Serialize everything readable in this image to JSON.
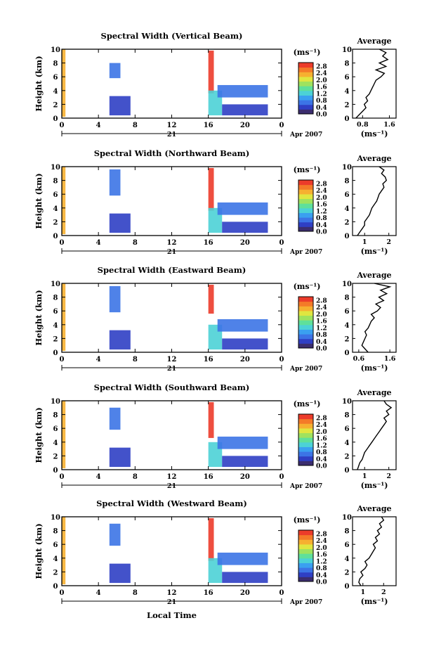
{
  "figure": {
    "date_label": "Apr 2007",
    "day_label": "21",
    "bottom_xlabel": "Local Time",
    "ylabel": "Height (km)",
    "units_label": "(ms⁻¹)",
    "avg_title": "Average",
    "avg_units": "(ms⁻¹)"
  },
  "colors": {
    "scale": [
      "#3b2d6e",
      "#2f3fc4",
      "#3c74e6",
      "#3aa0f0",
      "#4cd2d6",
      "#5fe09a",
      "#9fe25e",
      "#e0e640",
      "#f6b030",
      "#f47a28",
      "#ec3b2a"
    ]
  },
  "chart_data": [
    {
      "type": "heatmap",
      "title": "Spectral Width (Vertical Beam)",
      "xlabel": "Local Time",
      "ylabel": "Height (km)",
      "x_ticks": [
        "0",
        "4",
        "8",
        "12",
        "16",
        "20",
        "0"
      ],
      "xlim": [
        0,
        24
      ],
      "ylim": [
        0,
        10
      ],
      "y_ticks": [
        "0",
        "2",
        "4",
        "6",
        "8",
        "10"
      ],
      "colorbar": {
        "label": "(ms⁻¹)",
        "ticks": [
          "0.0",
          "0.4",
          "0.8",
          "1.2",
          "1.6",
          "2.0",
          "2.4",
          "2.8"
        ],
        "range": [
          0,
          3.0
        ]
      },
      "blocks": [
        {
          "t": [
            0.0,
            0.4
          ],
          "h": [
            0.2,
            10.0
          ],
          "level": 2.2
        },
        {
          "t": [
            5.2,
            7.5
          ],
          "h": [
            0.4,
            3.2
          ],
          "level": 0.3
        },
        {
          "t": [
            5.2,
            6.4
          ],
          "h": [
            5.8,
            8.0
          ],
          "level": 0.6
        },
        {
          "t": [
            16.0,
            16.6
          ],
          "h": [
            3.6,
            9.8
          ],
          "level": 2.8
        },
        {
          "t": [
            16.0,
            17.5
          ],
          "h": [
            0.4,
            4.0
          ],
          "level": 1.2
        },
        {
          "t": [
            17.5,
            22.5
          ],
          "h": [
            0.4,
            2.0
          ],
          "level": 0.5
        },
        {
          "t": [
            17.0,
            22.5
          ],
          "h": [
            3.0,
            4.8
          ],
          "level": 0.7
        }
      ],
      "average": {
        "xticks": [
          "0.8",
          "1.6"
        ],
        "xlim": [
          0.5,
          1.8
        ],
        "h": [
          0,
          0.5,
          1,
          1.5,
          2,
          2.5,
          3,
          3.5,
          4,
          4.5,
          5,
          5.5,
          6,
          6.5,
          7,
          7.5,
          8,
          8.5,
          9,
          9.5,
          10
        ],
        "v": [
          0.6,
          0.7,
          0.8,
          0.9,
          0.85,
          0.95,
          0.9,
          1.0,
          1.05,
          1.1,
          1.15,
          1.2,
          1.35,
          1.45,
          1.2,
          1.5,
          1.3,
          1.55,
          1.4,
          1.5,
          1.3
        ]
      }
    },
    {
      "type": "heatmap",
      "title": "Spectral Width (Northward Beam)",
      "xlabel": "Local Time",
      "ylabel": "Height (km)",
      "x_ticks": [
        "0",
        "4",
        "8",
        "12",
        "16",
        "20",
        "0"
      ],
      "xlim": [
        0,
        24
      ],
      "ylim": [
        0,
        10
      ],
      "y_ticks": [
        "0",
        "2",
        "4",
        "6",
        "8",
        "10"
      ],
      "colorbar": {
        "label": "(ms⁻¹)",
        "ticks": [
          "0.0",
          "0.4",
          "0.8",
          "1.2",
          "1.6",
          "2.0",
          "2.4",
          "2.8"
        ],
        "range": [
          0,
          3.0
        ]
      },
      "blocks": [
        {
          "t": [
            0.0,
            0.4
          ],
          "h": [
            0.2,
            10.0
          ],
          "level": 2.2
        },
        {
          "t": [
            5.2,
            7.5
          ],
          "h": [
            0.4,
            3.2
          ],
          "level": 0.3
        },
        {
          "t": [
            5.2,
            6.4
          ],
          "h": [
            5.8,
            9.6
          ],
          "level": 0.6
        },
        {
          "t": [
            16.0,
            16.6
          ],
          "h": [
            3.6,
            9.8
          ],
          "level": 2.8
        },
        {
          "t": [
            16.0,
            17.5
          ],
          "h": [
            0.4,
            4.0
          ],
          "level": 1.2
        },
        {
          "t": [
            17.5,
            22.5
          ],
          "h": [
            0.4,
            2.0
          ],
          "level": 0.5
        },
        {
          "t": [
            17.0,
            22.5
          ],
          "h": [
            3.0,
            4.8
          ],
          "level": 0.7
        }
      ],
      "average": {
        "xticks": [
          "1",
          "2"
        ],
        "xlim": [
          0.5,
          2.3
        ],
        "h": [
          0,
          0.5,
          1,
          1.5,
          2,
          2.5,
          3,
          3.5,
          4,
          4.5,
          5,
          5.5,
          6,
          6.5,
          7,
          7.5,
          8,
          8.5,
          9,
          9.5,
          10
        ],
        "v": [
          0.7,
          0.8,
          0.9,
          1.0,
          1.0,
          1.1,
          1.2,
          1.25,
          1.3,
          1.4,
          1.5,
          1.55,
          1.6,
          1.7,
          1.8,
          1.75,
          1.9,
          1.85,
          1.7,
          1.8,
          1.6
        ]
      }
    },
    {
      "type": "heatmap",
      "title": "Spectral Width (Eastward Beam)",
      "xlabel": "Local Time",
      "ylabel": "Height (km)",
      "x_ticks": [
        "0",
        "4",
        "8",
        "12",
        "16",
        "20",
        "0"
      ],
      "xlim": [
        0,
        24
      ],
      "ylim": [
        0,
        10
      ],
      "y_ticks": [
        "0",
        "2",
        "4",
        "6",
        "8",
        "10"
      ],
      "colorbar": {
        "label": "(ms⁻¹)",
        "ticks": [
          "0.0",
          "0.4",
          "0.8",
          "1.2",
          "1.6",
          "2.0",
          "2.4",
          "2.8"
        ],
        "range": [
          0,
          3.0
        ]
      },
      "blocks": [
        {
          "t": [
            0.0,
            0.4
          ],
          "h": [
            0.2,
            10.0
          ],
          "level": 2.2
        },
        {
          "t": [
            5.2,
            7.5
          ],
          "h": [
            0.4,
            3.2
          ],
          "level": 0.3
        },
        {
          "t": [
            5.2,
            6.4
          ],
          "h": [
            5.8,
            9.6
          ],
          "level": 0.6
        },
        {
          "t": [
            16.0,
            16.6
          ],
          "h": [
            5.6,
            9.8
          ],
          "level": 2.8
        },
        {
          "t": [
            16.0,
            17.5
          ],
          "h": [
            0.4,
            4.0
          ],
          "level": 1.2
        },
        {
          "t": [
            17.5,
            22.5
          ],
          "h": [
            0.4,
            2.0
          ],
          "level": 0.5
        },
        {
          "t": [
            17.0,
            22.5
          ],
          "h": [
            3.0,
            4.8
          ],
          "level": 0.7
        }
      ],
      "average": {
        "xticks": [
          "0.6",
          "1.6"
        ],
        "xlim": [
          0.4,
          1.8
        ],
        "h": [
          0,
          0.5,
          1,
          1.5,
          2,
          2.5,
          3,
          3.5,
          4,
          4.5,
          5,
          5.5,
          6,
          6.5,
          7,
          7.5,
          8,
          8.5,
          9,
          9.5,
          10
        ],
        "v": [
          0.9,
          0.8,
          0.7,
          0.75,
          0.8,
          0.85,
          0.8,
          0.9,
          0.95,
          1.0,
          1.1,
          1.0,
          1.2,
          1.3,
          1.15,
          1.4,
          1.25,
          1.5,
          1.3,
          1.6,
          1.1
        ]
      }
    },
    {
      "type": "heatmap",
      "title": "Spectral Width (Southward Beam)",
      "xlabel": "Local Time",
      "ylabel": "Height (km)",
      "x_ticks": [
        "0",
        "4",
        "8",
        "12",
        "16",
        "20",
        "0"
      ],
      "xlim": [
        0,
        24
      ],
      "ylim": [
        0,
        10
      ],
      "y_ticks": [
        "0",
        "2",
        "4",
        "6",
        "8",
        "10"
      ],
      "colorbar": {
        "label": "(ms⁻¹)",
        "ticks": [
          "0.0",
          "0.4",
          "0.8",
          "1.2",
          "1.6",
          "2.0",
          "2.4",
          "2.8"
        ],
        "range": [
          0,
          3.0
        ]
      },
      "blocks": [
        {
          "t": [
            0.0,
            0.4
          ],
          "h": [
            0.2,
            10.0
          ],
          "level": 2.2
        },
        {
          "t": [
            5.2,
            7.5
          ],
          "h": [
            0.4,
            3.2
          ],
          "level": 0.3
        },
        {
          "t": [
            5.2,
            6.4
          ],
          "h": [
            5.8,
            9.0
          ],
          "level": 0.6
        },
        {
          "t": [
            16.0,
            16.6
          ],
          "h": [
            4.6,
            9.8
          ],
          "level": 2.8
        },
        {
          "t": [
            16.0,
            17.5
          ],
          "h": [
            0.4,
            4.0
          ],
          "level": 1.2
        },
        {
          "t": [
            17.5,
            22.5
          ],
          "h": [
            0.4,
            2.0
          ],
          "level": 0.5
        },
        {
          "t": [
            17.0,
            22.5
          ],
          "h": [
            3.0,
            4.8
          ],
          "level": 0.7
        }
      ],
      "average": {
        "xticks": [
          "1",
          "2"
        ],
        "xlim": [
          0.5,
          2.3
        ],
        "h": [
          0,
          0.5,
          1,
          1.5,
          2,
          2.5,
          3,
          3.5,
          4,
          4.5,
          5,
          5.5,
          6,
          6.5,
          7,
          7.5,
          8,
          8.5,
          9,
          9.5,
          10
        ],
        "v": [
          0.7,
          0.75,
          0.8,
          0.9,
          0.95,
          1.0,
          1.1,
          1.2,
          1.3,
          1.4,
          1.5,
          1.6,
          1.7,
          1.8,
          1.9,
          1.8,
          2.0,
          1.9,
          2.1,
          1.9,
          1.8
        ]
      }
    },
    {
      "type": "heatmap",
      "title": "Spectral Width (Westward Beam)",
      "xlabel": "Local Time",
      "ylabel": "Height (km)",
      "x_ticks": [
        "0",
        "4",
        "8",
        "12",
        "16",
        "20",
        "0"
      ],
      "xlim": [
        0,
        24
      ],
      "ylim": [
        0,
        10
      ],
      "y_ticks": [
        "0",
        "2",
        "4",
        "6",
        "8",
        "10"
      ],
      "colorbar": {
        "label": "(ms⁻¹)",
        "ticks": [
          "0.0",
          "0.4",
          "0.8",
          "1.2",
          "1.6",
          "2.0",
          "2.4",
          "2.8"
        ],
        "range": [
          0,
          3.0
        ]
      },
      "blocks": [
        {
          "t": [
            0.0,
            0.4
          ],
          "h": [
            0.2,
            10.0
          ],
          "level": 2.2
        },
        {
          "t": [
            5.2,
            7.5
          ],
          "h": [
            0.4,
            3.2
          ],
          "level": 0.3
        },
        {
          "t": [
            5.2,
            6.4
          ],
          "h": [
            5.8,
            9.0
          ],
          "level": 0.6
        },
        {
          "t": [
            16.0,
            16.6
          ],
          "h": [
            3.6,
            9.8
          ],
          "level": 2.8
        },
        {
          "t": [
            16.0,
            17.5
          ],
          "h": [
            0.4,
            4.0
          ],
          "level": 1.2
        },
        {
          "t": [
            17.5,
            22.5
          ],
          "h": [
            0.4,
            2.0
          ],
          "level": 0.5
        },
        {
          "t": [
            17.0,
            22.5
          ],
          "h": [
            3.0,
            4.8
          ],
          "level": 0.7
        }
      ],
      "average": {
        "xticks": [
          "1",
          "2"
        ],
        "xlim": [
          0.5,
          2.6
        ],
        "h": [
          0,
          0.5,
          1,
          1.5,
          2,
          2.5,
          3,
          3.5,
          4,
          4.5,
          5,
          5.5,
          6,
          6.5,
          7,
          7.5,
          8,
          8.5,
          9,
          9.5,
          10
        ],
        "v": [
          0.9,
          0.8,
          0.85,
          1.0,
          0.9,
          1.1,
          1.2,
          1.1,
          1.3,
          1.4,
          1.5,
          1.6,
          1.5,
          1.7,
          1.6,
          1.8,
          1.7,
          1.9,
          1.8,
          2.0,
          1.9
        ]
      }
    }
  ]
}
